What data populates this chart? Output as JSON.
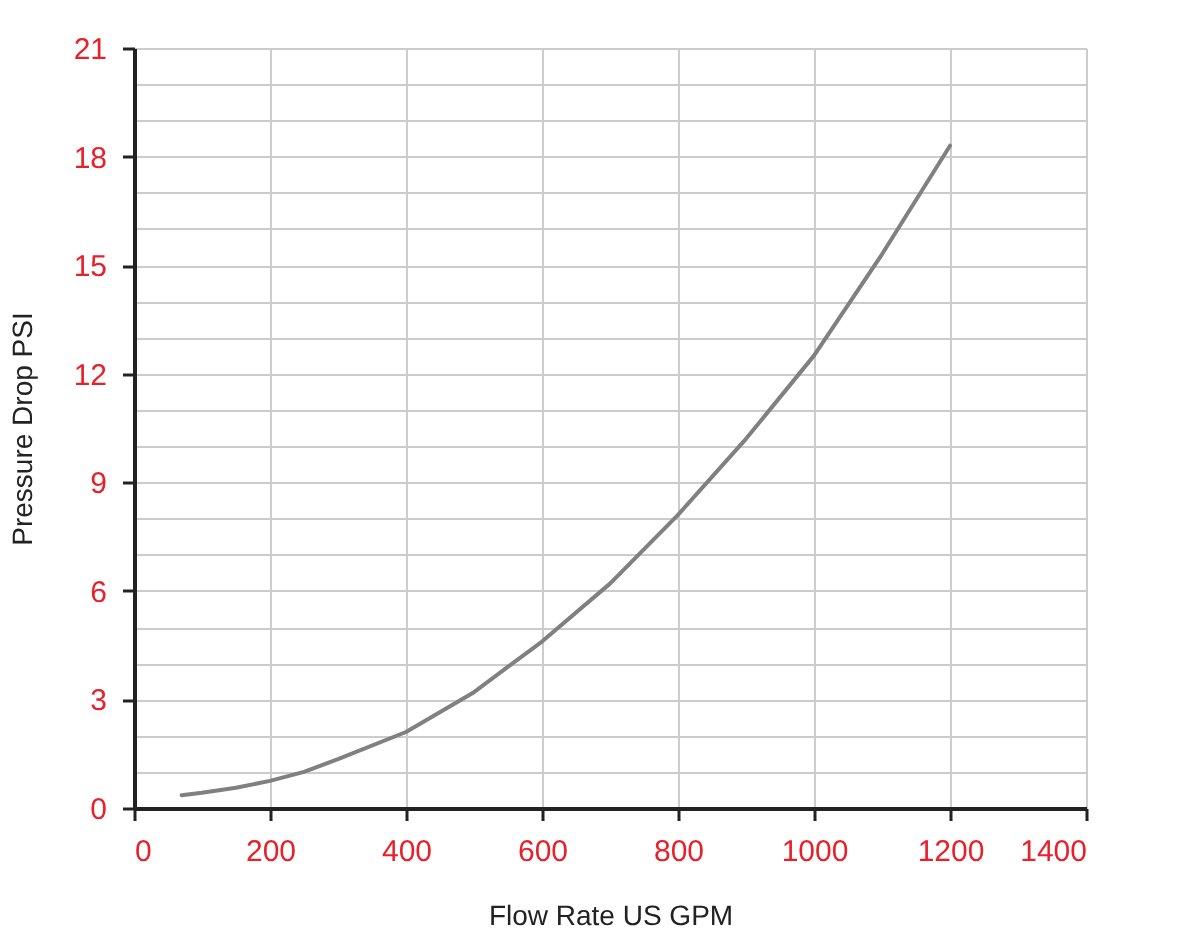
{
  "chart_data": {
    "type": "line",
    "xlabel": "Flow Rate US GPM",
    "ylabel": "Pressure Drop PSI",
    "x": [
      70,
      100,
      150,
      200,
      250,
      300,
      400,
      500,
      600,
      700,
      800,
      900,
      1000,
      1100,
      1200
    ],
    "series": [
      {
        "color": "#808080",
        "values": [
          0.35,
          0.42,
          0.56,
          0.75,
          1.0,
          1.35,
          2.1,
          3.2,
          4.6,
          6.2,
          8.1,
          10.2,
          12.5,
          15.3,
          18.3
        ]
      }
    ],
    "xlim": [
      0,
      1400
    ],
    "xticks": [
      0,
      200,
      400,
      600,
      800,
      1000,
      1200,
      1400
    ],
    "ylim": [
      0,
      21
    ],
    "yticks": [
      0,
      {
        "value": 1,
        "label": null
      },
      {
        "value": 2,
        "label": null
      },
      3,
      {
        "value": 4,
        "label": null
      },
      {
        "value": 5,
        "label": null
      },
      6,
      {
        "value": 7,
        "label": null
      },
      {
        "value": 8,
        "label": null
      },
      9,
      {
        "value": 10,
        "label": null
      },
      {
        "value": 11,
        "label": null
      },
      12,
      {
        "value": 13,
        "label": null
      },
      {
        "value": 14,
        "label": null
      },
      15,
      {
        "value": 16,
        "label": null
      },
      {
        "value": 17,
        "label": null
      },
      18,
      {
        "value": 19,
        "label": null
      },
      {
        "value": 20,
        "label": null
      },
      21
    ],
    "grid": true,
    "marker": "none",
    "line_style": "solid"
  }
}
